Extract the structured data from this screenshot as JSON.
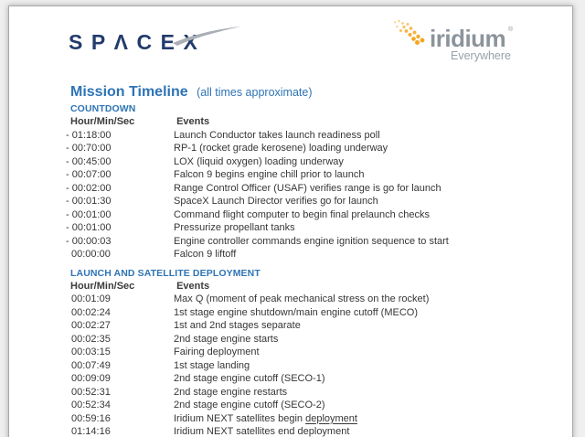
{
  "document": {
    "header": {
      "spacex_logo_text": "SPACEX",
      "iridium_logo_text": "iridium",
      "iridium_reg_mark": "®",
      "iridium_tagline": "Everywhere"
    },
    "title_main": "Mission Timeline",
    "title_suffix": "(all times approximate)",
    "sections": [
      {
        "heading": "COUNTDOWN",
        "columns": {
          "time": "Hour/Min/Sec",
          "events": "Events"
        },
        "rows": [
          {
            "time": "- 01:18:00",
            "event": "Launch Conductor takes launch readiness poll"
          },
          {
            "time": "- 00:70:00",
            "event": "RP-1 (rocket grade kerosene) loading underway"
          },
          {
            "time": "- 00:45:00",
            "event": "LOX (liquid oxygen) loading underway"
          },
          {
            "time": "- 00:07:00",
            "event": "Falcon 9 begins engine chill prior to launch"
          },
          {
            "time": "- 00:02:00",
            "event": "Range Control Officer (USAF) verifies range is go for launch"
          },
          {
            "time": "- 00:01:30",
            "event": "SpaceX Launch Director verifies go for launch"
          },
          {
            "time": "- 00:01:00",
            "event": "Command flight computer to begin final prelaunch checks"
          },
          {
            "time": "- 00:01:00",
            "event": "Pressurize propellant tanks"
          },
          {
            "time": "- 00:00:03",
            "event": "Engine controller commands engine ignition sequence to start"
          },
          {
            "time": "00:00:00",
            "event": "Falcon 9 liftoff"
          }
        ]
      },
      {
        "heading": "LAUNCH AND SATELLITE DEPLOYMENT",
        "columns": {
          "time": "Hour/Min/Sec",
          "events": "Events"
        },
        "rows": [
          {
            "time": "00:01:09",
            "event": "Max Q (moment of peak mechanical stress on the rocket)"
          },
          {
            "time": "00:02:24",
            "event": "1st stage engine shutdown/main engine cutoff (MECO)"
          },
          {
            "time": "00:02:27",
            "event": "1st and 2nd stages separate"
          },
          {
            "time": "00:02:35",
            "event": "2nd stage engine starts"
          },
          {
            "time": "00:03:15",
            "event": "Fairing deployment"
          },
          {
            "time": "00:07:49",
            "event": "1st stage landing"
          },
          {
            "time": "00:09:09",
            "event": "2nd stage engine cutoff (SECO-1)"
          },
          {
            "time": "00:52:31",
            "event": "2nd stage engine restarts"
          },
          {
            "time": "00:52:34",
            "event": "2nd stage engine cutoff (SECO-2)"
          },
          {
            "time": "00:59:16",
            "event": "Iridium NEXT satellites begin deployment",
            "underline": "deployment"
          },
          {
            "time": "01:14:16",
            "event": "Iridium NEXT satellites end deployment"
          }
        ]
      }
    ],
    "colors": {
      "heading_blue": "#2e74b5",
      "body_text": "#363636",
      "spacex_navy": "#233b6c",
      "swoosh_gray": "#a9afb5",
      "iridium_gray": "#8c949b",
      "iridium_gold": "#f2a71f",
      "page_background": "#ffffff",
      "canvas_background": "#efefef"
    }
  }
}
